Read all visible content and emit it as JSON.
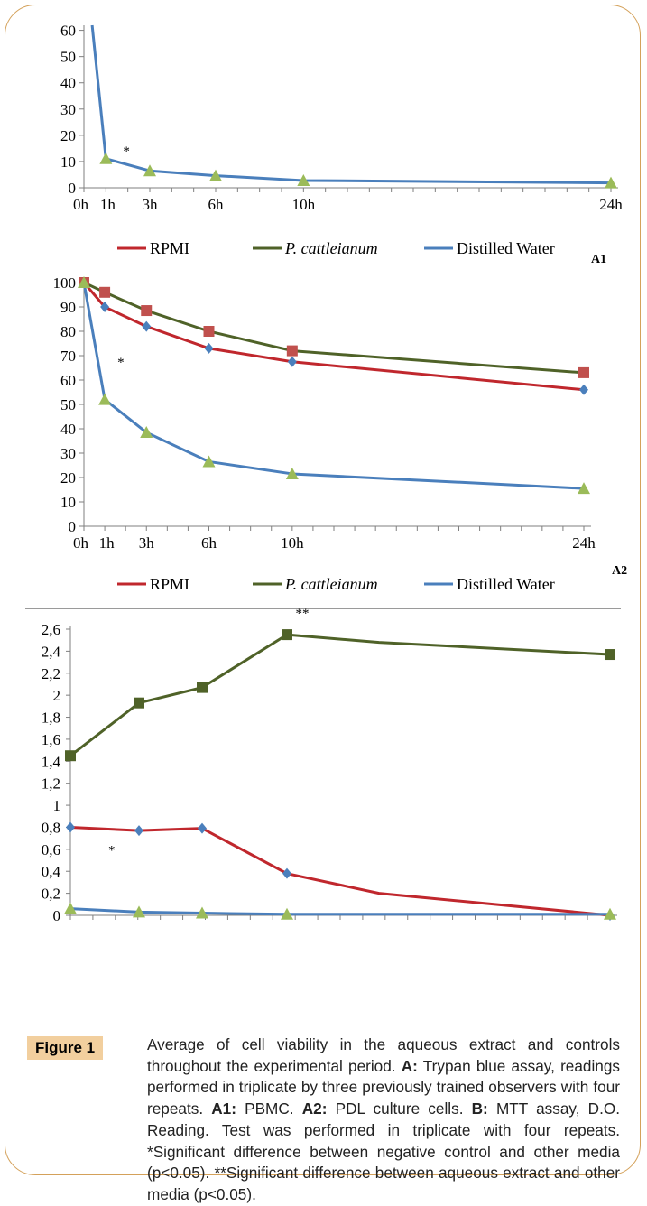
{
  "chart_data": [
    {
      "id": "A1",
      "type": "line",
      "panel_label": "A1",
      "x_ticks": [
        "0h",
        "1h",
        "3h",
        "6h",
        "10h",
        "24h"
      ],
      "x": [
        0,
        1,
        3,
        6,
        10,
        24
      ],
      "ylim": [
        0,
        65
      ],
      "y_ticks": [
        "0",
        "10",
        "20",
        "30",
        "40",
        "50",
        "60"
      ],
      "series": [
        {
          "name": "Distilled Water",
          "color": "#4a7fbc",
          "marker": "triangle",
          "marker_color": "#9bbb59",
          "values": [
            100,
            12,
            7,
            5,
            3,
            2
          ]
        }
      ],
      "annotations": [
        "*"
      ],
      "legend": [
        "RPMI",
        "P. cattleianum",
        "Distilled Water"
      ]
    },
    {
      "id": "A2",
      "type": "line",
      "panel_label": "A2",
      "x_ticks": [
        "0h",
        "1h",
        "3h",
        "6h",
        "10h",
        "24h"
      ],
      "x": [
        0,
        1,
        3,
        6,
        10,
        24
      ],
      "ylim": [
        0,
        100
      ],
      "y_ticks": [
        "0",
        "10",
        "20",
        "30",
        "40",
        "50",
        "60",
        "70",
        "80",
        "90",
        "100"
      ],
      "series": [
        {
          "name": "RPMI",
          "color": "#c0272d",
          "marker": "diamond",
          "marker_color": "#4a7fbc",
          "values": [
            100,
            90,
            82,
            73,
            67.5,
            56
          ]
        },
        {
          "name": "P. cattleianum",
          "color": "#4f6228",
          "marker": "square",
          "marker_color": "#c0504d",
          "values": [
            100,
            96,
            88.5,
            80,
            72,
            63
          ]
        },
        {
          "name": "Distilled Water",
          "color": "#4a7fbc",
          "marker": "triangle",
          "marker_color": "#9bbb59",
          "values": [
            100,
            52,
            38.5,
            26.5,
            21.5,
            15.5
          ]
        }
      ],
      "annotations": [
        "*"
      ],
      "legend": [
        "RPMI",
        "P. cattleianum",
        "Distilled Water"
      ]
    },
    {
      "id": "B",
      "type": "line",
      "x": [
        0,
        1,
        3,
        6,
        10,
        24
      ],
      "ylim": [
        0,
        2.6
      ],
      "y_ticks": [
        "0",
        "0,2",
        "0,4",
        "0,6",
        "0,8",
        "1",
        "1,2",
        "1,4",
        "1,6",
        "1,8",
        "2",
        "2,2",
        "2,4",
        "2,6"
      ],
      "series": [
        {
          "name": "P. cattleianum",
          "color": "#4f6228",
          "marker": "square",
          "marker_color": "#4f6228",
          "values": [
            1.45,
            1.93,
            2.07,
            2.55,
            2.48,
            2.37
          ]
        },
        {
          "name": "RPMI",
          "color": "#c0272d",
          "marker": "diamond",
          "marker_color": "#4a7fbc",
          "values": [
            0.8,
            0.77,
            0.79,
            0.38,
            0.2,
            0.0
          ]
        },
        {
          "name": "Distilled Water",
          "color": "#4a7fbc",
          "marker": "triangle",
          "marker_color": "#9bbb59",
          "values": [
            0.06,
            0.03,
            0.02,
            0.01,
            0.01,
            0.01
          ]
        }
      ],
      "annotations": [
        "*",
        "**"
      ]
    }
  ],
  "figure": {
    "badge": "Figure 1",
    "caption_parts": [
      {
        "t": "Average of cell viability in the aqueous extract and controls throughout the experimental period. ",
        "b": false
      },
      {
        "t": "A:",
        "b": true
      },
      {
        "t": " Trypan blue assay, readings performed in triplicate by three previously trained observers with four repeats. ",
        "b": false
      },
      {
        "t": "A1:",
        "b": true
      },
      {
        "t": " PBMC. ",
        "b": false
      },
      {
        "t": "A2:",
        "b": true
      },
      {
        "t": " PDL culture cells. ",
        "b": false
      },
      {
        "t": "B:",
        "b": true
      },
      {
        "t": " MTT assay, D.O. Reading. Test was performed in triplicate with four repeats. *Significant difference between negative control and other media (p<0.05). **Significant difference between aqueous extract and other media (p<0.05).",
        "b": false
      }
    ]
  }
}
